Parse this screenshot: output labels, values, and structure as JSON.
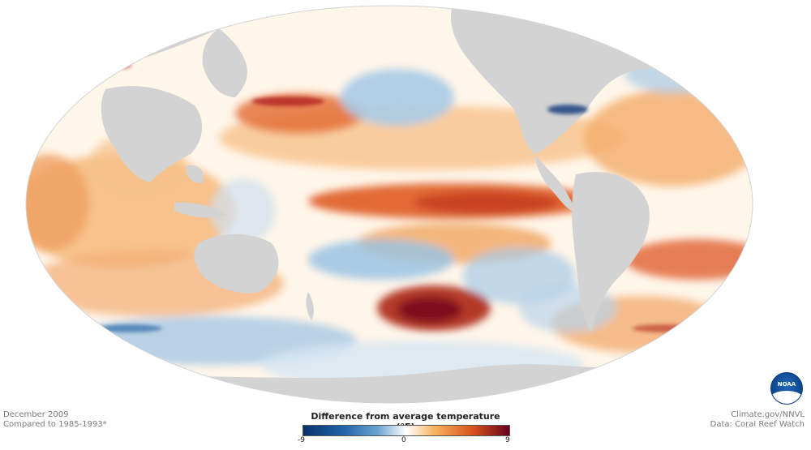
{
  "map": {
    "projection": "mollweide",
    "ocean_fill": "#fff8ef",
    "land_color": "#d3d3d3",
    "colors": {
      "strong_cold": "#08306b",
      "cold": "#6aa3d0",
      "neutral": "#ffffff",
      "warm": "#f4a259",
      "strong_warm": "#67001f"
    }
  },
  "footer": {
    "date": "December 2009",
    "baseline": "Compared to 1985-1993*",
    "credit": "Climate.gov/NNVL",
    "source": "Data: Coral Reef Watch"
  },
  "legend": {
    "title": "Difference from average temperature (°F)",
    "min_label": "-9",
    "mid_label": "0",
    "max_label": "9"
  },
  "logo": {
    "text": "NOAA"
  }
}
